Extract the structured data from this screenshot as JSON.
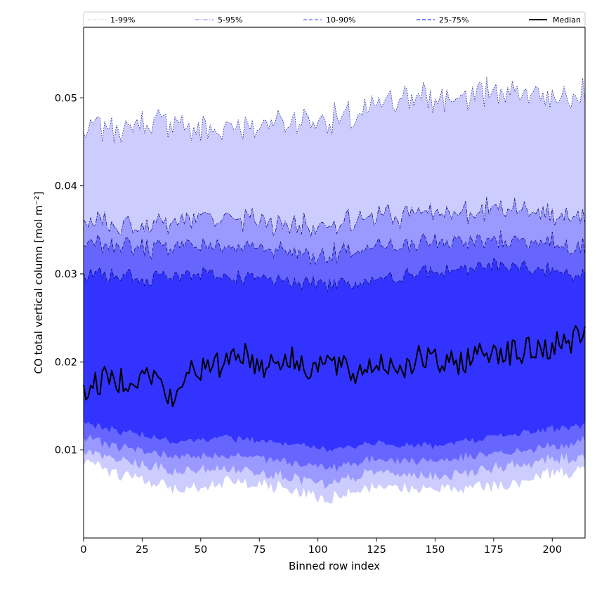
{
  "chart_data": {
    "type": "area",
    "xlabel": "Binned row index",
    "ylabel": "CO total vertical column [mol m⁻²]",
    "xlim": [
      0,
      214
    ],
    "ylim": [
      0.0,
      0.058
    ],
    "xticks": [
      0,
      25,
      50,
      75,
      100,
      125,
      150,
      175,
      200
    ],
    "yticks": [
      0.01,
      0.02,
      0.03,
      0.04,
      0.05
    ],
    "ytick_labels": [
      "0.01",
      "0.02",
      "0.03",
      "0.04",
      "0.05"
    ],
    "grid": false,
    "legend": {
      "placement": "top",
      "entries": [
        {
          "label": "1-99%",
          "style": "dotted",
          "color": "#ccccff"
        },
        {
          "label": "5-95%",
          "style": "dashdot",
          "color": "#9999ff"
        },
        {
          "label": "10-90%",
          "style": "dashed",
          "color": "#6666ff"
        },
        {
          "label": "25-75%",
          "style": "dashed",
          "color": "#3333ff"
        },
        {
          "label": "Median",
          "style": "solid",
          "color": "#000000"
        }
      ]
    },
    "bands": [
      {
        "label": "1-99%",
        "color": "#ccccff",
        "lower_knots": [
          [
            0,
            0.0085
          ],
          [
            40,
            0.0055
          ],
          [
            60,
            0.0065
          ],
          [
            80,
            0.006
          ],
          [
            105,
            0.0045
          ],
          [
            125,
            0.006
          ],
          [
            150,
            0.0055
          ],
          [
            175,
            0.006
          ],
          [
            200,
            0.0075
          ],
          [
            214,
            0.008
          ]
        ],
        "upper_knots": [
          [
            0,
            0.0465
          ],
          [
            30,
            0.047
          ],
          [
            50,
            0.0465
          ],
          [
            75,
            0.047
          ],
          [
            100,
            0.0475
          ],
          [
            120,
            0.048
          ],
          [
            135,
            0.05
          ],
          [
            160,
            0.05
          ],
          [
            180,
            0.051
          ],
          [
            214,
            0.0505
          ]
        ]
      },
      {
        "label": "5-95%",
        "color": "#9999ff",
        "lower_knots": [
          [
            0,
            0.0098
          ],
          [
            40,
            0.0075
          ],
          [
            60,
            0.008
          ],
          [
            80,
            0.0075
          ],
          [
            105,
            0.006
          ],
          [
            125,
            0.0075
          ],
          [
            150,
            0.007
          ],
          [
            175,
            0.008
          ],
          [
            200,
            0.009
          ],
          [
            214,
            0.0095
          ]
        ],
        "upper_knots": [
          [
            0,
            0.036
          ],
          [
            30,
            0.0355
          ],
          [
            50,
            0.0365
          ],
          [
            75,
            0.036
          ],
          [
            100,
            0.0355
          ],
          [
            120,
            0.036
          ],
          [
            140,
            0.037
          ],
          [
            160,
            0.037
          ],
          [
            180,
            0.0375
          ],
          [
            214,
            0.0365
          ]
        ]
      },
      {
        "label": "10-90%",
        "color": "#6666ff",
        "lower_knots": [
          [
            0,
            0.0115
          ],
          [
            40,
            0.009
          ],
          [
            60,
            0.0095
          ],
          [
            80,
            0.009
          ],
          [
            105,
            0.008
          ],
          [
            125,
            0.009
          ],
          [
            150,
            0.0088
          ],
          [
            175,
            0.0095
          ],
          [
            200,
            0.0105
          ],
          [
            214,
            0.011
          ]
        ],
        "upper_knots": [
          [
            0,
            0.0335
          ],
          [
            30,
            0.033
          ],
          [
            50,
            0.0335
          ],
          [
            75,
            0.033
          ],
          [
            100,
            0.032
          ],
          [
            120,
            0.0325
          ],
          [
            140,
            0.0335
          ],
          [
            160,
            0.0335
          ],
          [
            180,
            0.034
          ],
          [
            214,
            0.033
          ]
        ]
      },
      {
        "label": "25-75%",
        "color": "#3333ff",
        "lower_knots": [
          [
            0,
            0.013
          ],
          [
            40,
            0.011
          ],
          [
            60,
            0.0115
          ],
          [
            80,
            0.011
          ],
          [
            105,
            0.01
          ],
          [
            125,
            0.0108
          ],
          [
            150,
            0.0105
          ],
          [
            175,
            0.0115
          ],
          [
            200,
            0.0125
          ],
          [
            214,
            0.013
          ]
        ],
        "upper_knots": [
          [
            0,
            0.03
          ],
          [
            30,
            0.0295
          ],
          [
            50,
            0.03
          ],
          [
            75,
            0.0295
          ],
          [
            100,
            0.029
          ],
          [
            120,
            0.029
          ],
          [
            140,
            0.03
          ],
          [
            160,
            0.0305
          ],
          [
            180,
            0.031
          ],
          [
            214,
            0.03
          ]
        ]
      }
    ],
    "median": {
      "label": "Median",
      "color": "#000000",
      "knots": [
        [
          0,
          0.0168
        ],
        [
          10,
          0.018
        ],
        [
          20,
          0.0182
        ],
        [
          30,
          0.0185
        ],
        [
          39,
          0.015
        ],
        [
          45,
          0.0195
        ],
        [
          55,
          0.019
        ],
        [
          66,
          0.0215
        ],
        [
          75,
          0.0195
        ],
        [
          85,
          0.0205
        ],
        [
          95,
          0.0195
        ],
        [
          105,
          0.02
        ],
        [
          115,
          0.0185
        ],
        [
          125,
          0.02
        ],
        [
          135,
          0.0195
        ],
        [
          145,
          0.0205
        ],
        [
          155,
          0.0195
        ],
        [
          165,
          0.0205
        ],
        [
          175,
          0.0215
        ],
        [
          185,
          0.021
        ],
        [
          195,
          0.0215
        ],
        [
          205,
          0.022
        ],
        [
          214,
          0.0235
        ]
      ]
    }
  }
}
